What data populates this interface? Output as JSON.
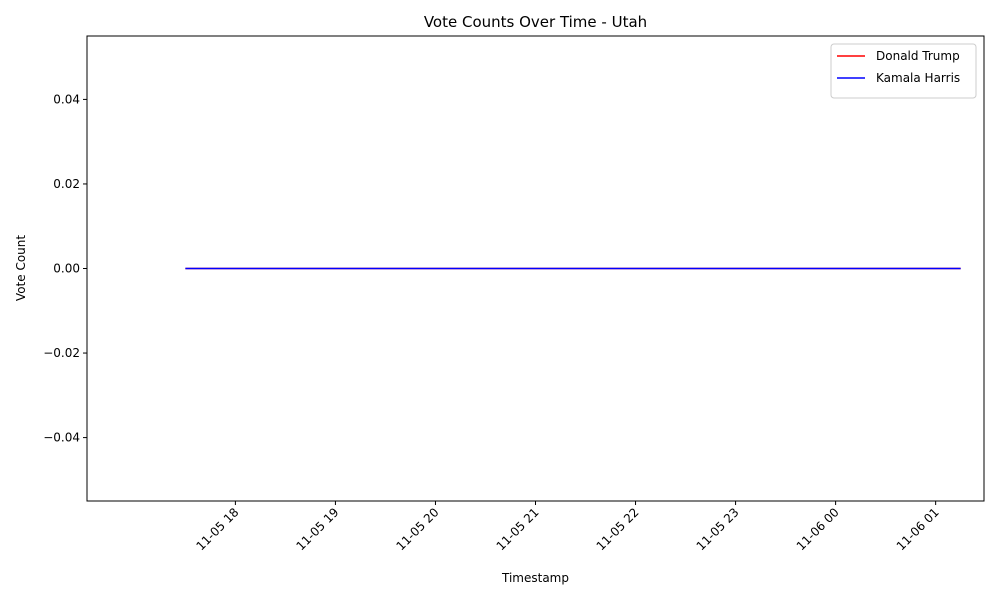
{
  "chart_data": {
    "type": "line",
    "title": "Vote Counts Over Time - Utah",
    "xlabel": "Timestamp",
    "ylabel": "Vote Count",
    "xlim": [
      "2024-11-05 16:31",
      "2024-11-06 01:29"
    ],
    "ylim": [
      -0.055,
      0.055
    ],
    "x_ticks": [
      {
        "t": "2024-11-05 18:00",
        "label": "11-05 18"
      },
      {
        "t": "2024-11-05 19:00",
        "label": "11-05 19"
      },
      {
        "t": "2024-11-05 20:00",
        "label": "11-05 20"
      },
      {
        "t": "2024-11-05 21:00",
        "label": "11-05 21"
      },
      {
        "t": "2024-11-05 22:00",
        "label": "11-05 22"
      },
      {
        "t": "2024-11-05 23:00",
        "label": "11-05 23"
      },
      {
        "t": "2024-11-06 00:00",
        "label": "11-06 00"
      },
      {
        "t": "2024-11-06 01:00",
        "label": "11-06 01"
      }
    ],
    "y_ticks": [
      {
        "v": 0.04,
        "label": "0.04"
      },
      {
        "v": 0.02,
        "label": "0.02"
      },
      {
        "v": 0.0,
        "label": "0.00"
      },
      {
        "v": -0.02,
        "label": "−0.02"
      },
      {
        "v": -0.04,
        "label": "−0.04"
      }
    ],
    "series": [
      {
        "name": "Donald Trump",
        "color": "#ff0000",
        "points": [
          {
            "t": "2024-11-05 17:30",
            "v": 0
          },
          {
            "t": "2024-11-06 01:15",
            "v": 0
          }
        ]
      },
      {
        "name": "Kamala Harris",
        "color": "#0000ff",
        "points": [
          {
            "t": "2024-11-05 17:30",
            "v": 0
          },
          {
            "t": "2024-11-06 01:15",
            "v": 0
          }
        ]
      }
    ],
    "legend": "top-right",
    "grid": false
  }
}
